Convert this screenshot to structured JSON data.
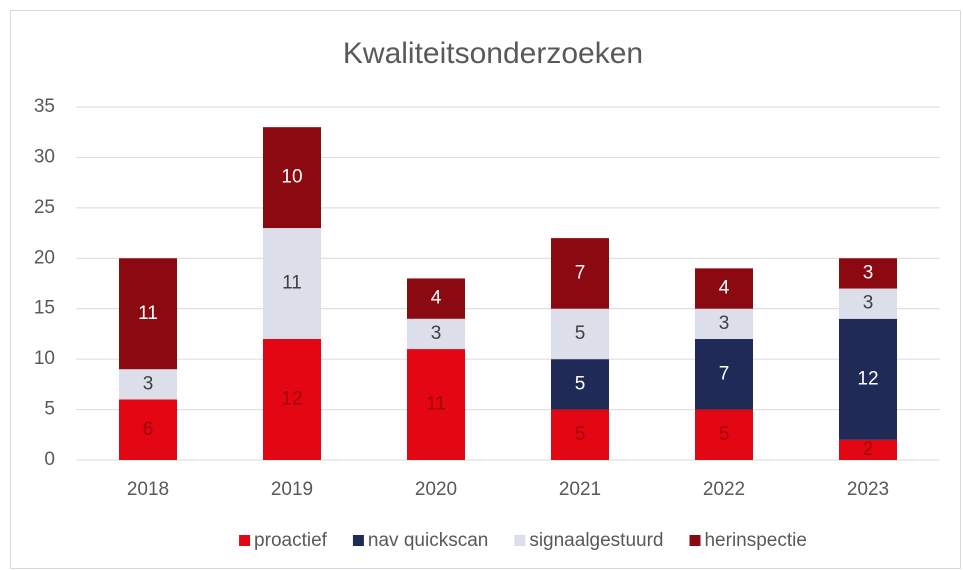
{
  "chart_data": {
    "type": "stacked_bar",
    "title": "Kwaliteitsonderzoeken",
    "categories": [
      "2018",
      "2019",
      "2020",
      "2021",
      "2022",
      "2023"
    ],
    "series": [
      {
        "name": "proactief",
        "color": "#e30613",
        "label_color": "#a3000c",
        "values": [
          6,
          12,
          11,
          5,
          5,
          2
        ]
      },
      {
        "name": "nav quickscan",
        "color": "#1f2a56",
        "label_color": "#ffffff",
        "values": [
          0,
          0,
          0,
          5,
          7,
          12
        ]
      },
      {
        "name": "signaalgestuurd",
        "color": "#dcdfea",
        "label_color": "#404040",
        "values": [
          3,
          11,
          3,
          5,
          3,
          3
        ]
      },
      {
        "name": "herinspectie",
        "color": "#8b0a11",
        "label_color": "#ffffff",
        "values": [
          11,
          10,
          4,
          7,
          4,
          3
        ]
      }
    ],
    "ylim": [
      0,
      35
    ],
    "yticks": [
      0,
      5,
      10,
      15,
      20,
      25,
      30,
      35
    ],
    "grid": true,
    "legend": "bottom"
  }
}
